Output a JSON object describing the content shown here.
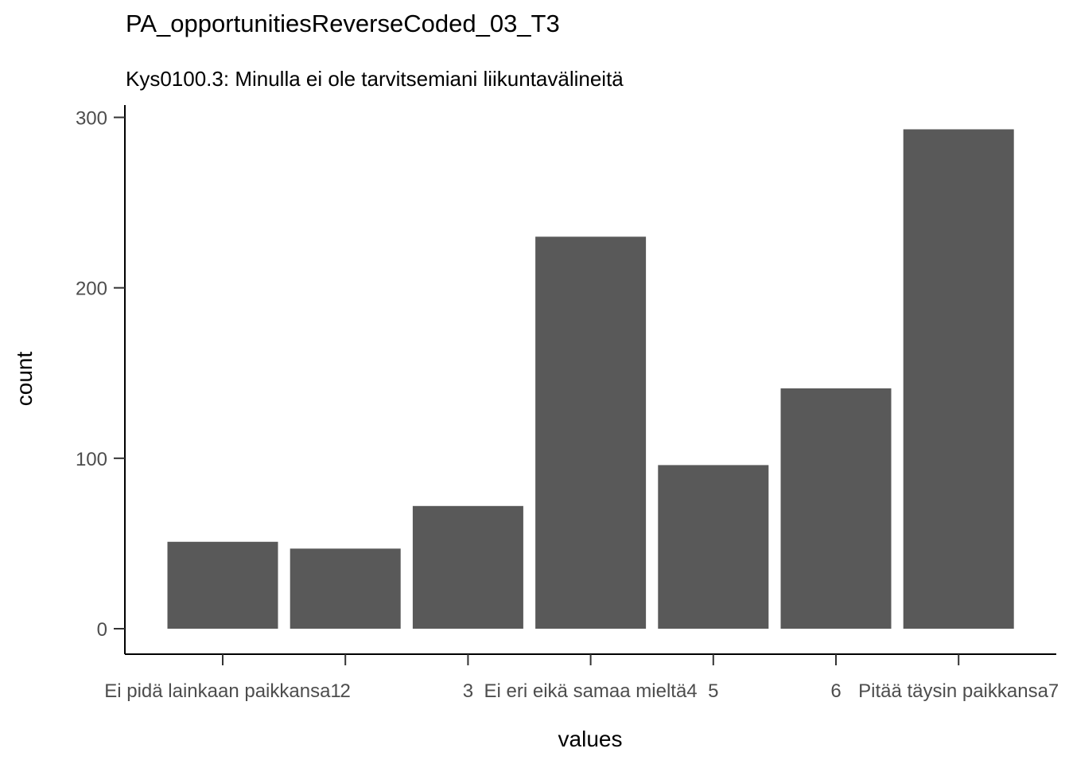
{
  "chart_data": {
    "type": "bar",
    "title": "PA_opportunitiesReverseCoded_03_T3",
    "subtitle": "Kys0100.3: Minulla ei ole tarvitsemiani liikuntavälineitä",
    "xlabel": "values",
    "ylabel": "count",
    "categories": [
      "Ei pidä lainkaan paikkansa1",
      "2",
      "3",
      "Ei eri eikä samaa mieltä4",
      "5",
      "6",
      "Pitää täysin paikkansa7"
    ],
    "values": [
      51,
      47,
      72,
      230,
      96,
      141,
      293
    ],
    "yticks": [
      0,
      100,
      200,
      300
    ],
    "ylim": [
      0,
      300
    ],
    "bar_color": "#595959",
    "legend": "none",
    "grid": false
  }
}
